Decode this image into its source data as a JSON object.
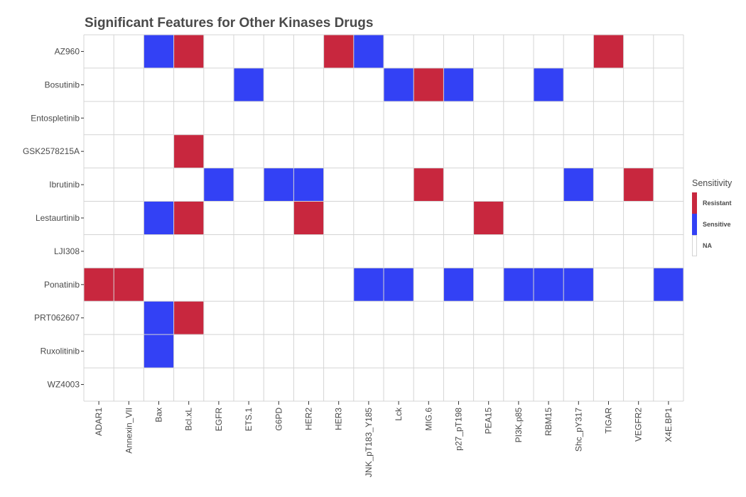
{
  "chart_data": {
    "type": "heatmap",
    "title": "Significant Features for Other Kinases Drugs",
    "xlabel": "",
    "ylabel": "",
    "x_categories": [
      "ADAR1",
      "Annexin_VII",
      "Bax",
      "Bcl.xL",
      "EGFR",
      "ETS.1",
      "G6PD",
      "HER2",
      "HER3",
      "JNK_pT183_Y185",
      "Lck",
      "MIG.6",
      "p27_pT198",
      "PEA15",
      "PI3K.p85",
      "RBM15",
      "Shc_pY317",
      "TIGAR",
      "VEGFR2",
      "X4E.BP1"
    ],
    "y_categories": [
      "AZ960",
      "Bosutinib",
      "Entospletinib",
      "GSK2578215A",
      "Ibrutinib",
      "Lestaurtinib",
      "LJI308",
      "Ponatinib",
      "PRT062607",
      "Ruxolitinib",
      "WZ4003"
    ],
    "cells": [
      {
        "drug": "AZ960",
        "feature": "Bax",
        "sensitivity": "Sensitive"
      },
      {
        "drug": "AZ960",
        "feature": "Bcl.xL",
        "sensitivity": "Resistant"
      },
      {
        "drug": "AZ960",
        "feature": "HER3",
        "sensitivity": "Resistant"
      },
      {
        "drug": "AZ960",
        "feature": "JNK_pT183_Y185",
        "sensitivity": "Sensitive"
      },
      {
        "drug": "AZ960",
        "feature": "TIGAR",
        "sensitivity": "Resistant"
      },
      {
        "drug": "Bosutinib",
        "feature": "ETS.1",
        "sensitivity": "Sensitive"
      },
      {
        "drug": "Bosutinib",
        "feature": "Lck",
        "sensitivity": "Sensitive"
      },
      {
        "drug": "Bosutinib",
        "feature": "MIG.6",
        "sensitivity": "Resistant"
      },
      {
        "drug": "Bosutinib",
        "feature": "p27_pT198",
        "sensitivity": "Sensitive"
      },
      {
        "drug": "Bosutinib",
        "feature": "RBM15",
        "sensitivity": "Sensitive"
      },
      {
        "drug": "GSK2578215A",
        "feature": "Bcl.xL",
        "sensitivity": "Resistant"
      },
      {
        "drug": "Ibrutinib",
        "feature": "EGFR",
        "sensitivity": "Sensitive"
      },
      {
        "drug": "Ibrutinib",
        "feature": "G6PD",
        "sensitivity": "Sensitive"
      },
      {
        "drug": "Ibrutinib",
        "feature": "HER2",
        "sensitivity": "Sensitive"
      },
      {
        "drug": "Ibrutinib",
        "feature": "MIG.6",
        "sensitivity": "Resistant"
      },
      {
        "drug": "Ibrutinib",
        "feature": "Shc_pY317",
        "sensitivity": "Sensitive"
      },
      {
        "drug": "Ibrutinib",
        "feature": "VEGFR2",
        "sensitivity": "Resistant"
      },
      {
        "drug": "Lestaurtinib",
        "feature": "Bax",
        "sensitivity": "Sensitive"
      },
      {
        "drug": "Lestaurtinib",
        "feature": "Bcl.xL",
        "sensitivity": "Resistant"
      },
      {
        "drug": "Lestaurtinib",
        "feature": "HER2",
        "sensitivity": "Resistant"
      },
      {
        "drug": "Lestaurtinib",
        "feature": "PEA15",
        "sensitivity": "Resistant"
      },
      {
        "drug": "Ponatinib",
        "feature": "ADAR1",
        "sensitivity": "Resistant"
      },
      {
        "drug": "Ponatinib",
        "feature": "Annexin_VII",
        "sensitivity": "Resistant"
      },
      {
        "drug": "Ponatinib",
        "feature": "JNK_pT183_Y185",
        "sensitivity": "Sensitive"
      },
      {
        "drug": "Ponatinib",
        "feature": "Lck",
        "sensitivity": "Sensitive"
      },
      {
        "drug": "Ponatinib",
        "feature": "p27_pT198",
        "sensitivity": "Sensitive"
      },
      {
        "drug": "Ponatinib",
        "feature": "PI3K.p85",
        "sensitivity": "Sensitive"
      },
      {
        "drug": "Ponatinib",
        "feature": "RBM15",
        "sensitivity": "Sensitive"
      },
      {
        "drug": "Ponatinib",
        "feature": "Shc_pY317",
        "sensitivity": "Sensitive"
      },
      {
        "drug": "Ponatinib",
        "feature": "X4E.BP1",
        "sensitivity": "Sensitive"
      },
      {
        "drug": "PRT062607",
        "feature": "Bax",
        "sensitivity": "Sensitive"
      },
      {
        "drug": "PRT062607",
        "feature": "Bcl.xL",
        "sensitivity": "Resistant"
      },
      {
        "drug": "Ruxolitinib",
        "feature": "Bax",
        "sensitivity": "Sensitive"
      }
    ],
    "legend": {
      "title": "Sensitivity",
      "position": "right",
      "items": [
        {
          "label": "Resistant",
          "color": "#c8273e"
        },
        {
          "label": "Sensitive",
          "color": "#3341f5"
        },
        {
          "label": "NA",
          "color": "#ffffff"
        }
      ]
    },
    "grid": true,
    "colors": {
      "Resistant": "#c8273e",
      "Sensitive": "#3341f5",
      "NA": "#ffffff",
      "grid": "#d4d4d4",
      "text": "#4a4a4a"
    }
  }
}
